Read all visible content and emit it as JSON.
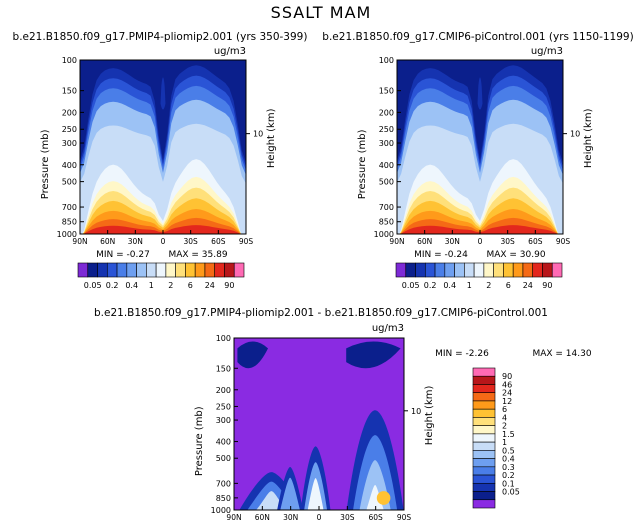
{
  "figure": {
    "title": "SSALT MAM",
    "colors": {
      "ocean_palette": [
        "#7d2ad6",
        "#0b1f8c",
        "#1533b0",
        "#2a54d6",
        "#4a7ee8",
        "#6e9ff0",
        "#9cc2f5",
        "#c8ddf7",
        "#eef6fd",
        "#fff7c8",
        "#ffe07a",
        "#ffc233",
        "#ff9a1a",
        "#f56a16",
        "#e3271d",
        "#b8161a",
        "#ff6ab4"
      ],
      "diff_palette": [
        "#8a2be2",
        "#0b1f8c",
        "#1533b0",
        "#2a54d6",
        "#4a7ee8",
        "#6e9ff0",
        "#9cc2f5",
        "#c8ddf7",
        "#eef6fd",
        "#fff7c8",
        "#ffe07a",
        "#ffc233",
        "#ff9a1a",
        "#f56a16",
        "#e3271d",
        "#b8161a",
        "#ff6ab4"
      ]
    }
  },
  "chart_data": [
    {
      "type": "heatmap",
      "title": "b.e21.B1850.f09_g17.PMIP4-pliomip2.001 (yrs 350-399)",
      "units": "ug/m3",
      "xlabel": "",
      "ylabel": "Pressure (mb)",
      "y2label": "Height (km)",
      "x_ticks": [
        "90N",
        "60N",
        "30N",
        "0",
        "30S",
        "60S",
        "90S"
      ],
      "y_ticks": [
        "100",
        "150",
        "200",
        "250",
        "300",
        "400",
        "500",
        "700",
        "850",
        "1000"
      ],
      "y2_ticks": [
        "10"
      ],
      "min_label": "MIN = -0.27",
      "max_label": "MAX = 35.89",
      "min": -0.27,
      "max": 35.89,
      "colorbar_labels": [
        "0.05",
        "0.2",
        "0.4",
        "1",
        "2",
        "6",
        "24",
        "90"
      ]
    },
    {
      "type": "heatmap",
      "title": "b.e21.B1850.f09_g17.CMIP6-piControl.001 (yrs 1150-1199)",
      "units": "ug/m3",
      "xlabel": "",
      "ylabel": "Pressure (mb)",
      "y2label": "Height (km)",
      "x_ticks": [
        "90N",
        "60N",
        "30N",
        "0",
        "30S",
        "60S",
        "90S"
      ],
      "y_ticks": [
        "100",
        "150",
        "200",
        "250",
        "300",
        "400",
        "500",
        "700",
        "850",
        "1000"
      ],
      "y2_ticks": [
        "10"
      ],
      "min_label": "MIN = -0.24",
      "max_label": "MAX = 30.90",
      "min": -0.24,
      "max": 30.9,
      "colorbar_labels": [
        "0.05",
        "0.2",
        "0.4",
        "1",
        "2",
        "6",
        "24",
        "90"
      ]
    },
    {
      "type": "heatmap",
      "title": "b.e21.B1850.f09_g17.PMIP4-pliomip2.001 - b.e21.B1850.f09_g17.CMIP6-piControl.001",
      "units": "ug/m3",
      "xlabel": "",
      "ylabel": "Pressure (mb)",
      "y2label": "Height (km)",
      "x_ticks": [
        "90N",
        "60N",
        "30N",
        "0",
        "30S",
        "60S",
        "90S"
      ],
      "y_ticks": [
        "100",
        "150",
        "200",
        "250",
        "300",
        "400",
        "500",
        "700",
        "850",
        "1000"
      ],
      "y2_ticks": [
        "10"
      ],
      "min_label": "MIN = -2.26",
      "max_label": "MAX = 14.30",
      "min": -2.26,
      "max": 14.3,
      "colorbar_labels": [
        "90",
        "46",
        "24",
        "12",
        "6",
        "4",
        "2",
        "1.5",
        "1",
        "0.5",
        "0.4",
        "0.3",
        "0.2",
        "0.1",
        "0.05"
      ]
    }
  ]
}
